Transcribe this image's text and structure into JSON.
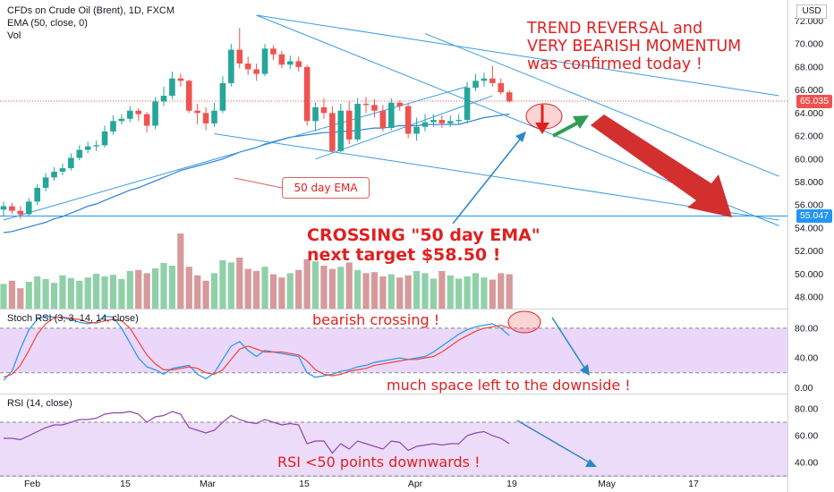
{
  "header": {
    "symbol": "CFDs on Crude Oil (Brent), 1D, FXCM",
    "ema_label": "EMA (50, close, 0)",
    "vol_label": "Vol",
    "stoch_label": "Stoch RSI (3, 3, 14, 14, close)",
    "rsi_label": "RSI (14, close)"
  },
  "price_axis": {
    "currency": "USD",
    "ticks": [
      "72.000",
      "70.000",
      "68.000",
      "66.000",
      "64.000",
      "62.000",
      "60.000",
      "58.000",
      "56.000",
      "54.000",
      "52.000",
      "50.000",
      "48.000"
    ],
    "last_price": "65.035",
    "level_price": "55.047"
  },
  "stoch_axis": {
    "ticks": [
      "80.00",
      "40.00",
      "0.00"
    ]
  },
  "rsi_axis": {
    "ticks": [
      "80.00",
      "60.00",
      "40.00"
    ]
  },
  "time_axis": {
    "ticks": [
      "Feb",
      "15",
      "Mar",
      "15",
      "Apr",
      "19",
      "May",
      "17"
    ]
  },
  "annotations": {
    "trend_line1": "TREND REVERSAL and",
    "trend_line2": "VERY BEARISH MOMENTUM",
    "trend_line3": "was confirmed today !",
    "ema_callout": "50 day EMA",
    "crossing_line1": "CROSSING \"50 day EMA\"",
    "crossing_line2": "next target $58.50 !",
    "bearish_crossing": "bearish crossing !",
    "space_left": "much space left to the downside !",
    "rsi_note": "RSI <50 points downwards !"
  },
  "colors": {
    "up": "#26a69a",
    "down": "#ef5350",
    "annotation": "#e02020",
    "trendline": "#3c9be0",
    "ema": "#2d7fd6",
    "stoch_k": "#2196f3",
    "stoch_d": "#f44336",
    "rsi": "#8e44ad",
    "band": "#e5cdf7",
    "green_arrow": "#2e9e55"
  },
  "chart_data": {
    "type": "candlestick",
    "dates": [
      "01-27",
      "01-28",
      "01-29",
      "02-01",
      "02-02",
      "02-03",
      "02-04",
      "02-05",
      "02-08",
      "02-09",
      "02-10",
      "02-11",
      "02-12",
      "02-15",
      "02-16",
      "02-17",
      "02-18",
      "02-19",
      "02-22",
      "02-23",
      "02-24",
      "02-25",
      "02-26",
      "03-01",
      "03-02",
      "03-03",
      "03-04",
      "03-05",
      "03-08",
      "03-09",
      "03-10",
      "03-11",
      "03-12",
      "03-15",
      "03-16",
      "03-17",
      "03-18",
      "03-19",
      "03-22",
      "03-23",
      "03-24",
      "03-25",
      "03-26",
      "03-29",
      "03-30",
      "03-31",
      "04-01",
      "04-02",
      "04-05",
      "04-06",
      "04-07",
      "04-08",
      "04-09",
      "04-12",
      "04-13",
      "04-14",
      "04-15",
      "04-16",
      "04-19",
      "04-20",
      "04-21"
    ],
    "open": [
      55.6,
      55.9,
      55.5,
      55.2,
      56.3,
      57.5,
      58.4,
      58.9,
      59.2,
      60.1,
      60.8,
      61.1,
      61.2,
      62.4,
      63.3,
      63.5,
      64.2,
      63.9,
      62.9,
      65.0,
      65.5,
      67.0,
      66.8,
      64.2,
      64.0,
      63.1,
      64.2,
      66.6,
      69.5,
      68.3,
      67.8,
      67.4,
      69.6,
      69.1,
      68.2,
      68.5,
      68.0,
      63.3,
      64.5,
      64.0,
      60.7,
      64.2,
      61.7,
      64.8,
      64.7,
      64.2,
      62.7,
      64.9,
      64.6,
      62.2,
      62.8,
      63.2,
      63.4,
      63.1,
      63.3,
      63.4,
      66.2,
      66.8,
      67.0,
      66.6,
      65.8
    ],
    "close": [
      55.9,
      55.5,
      55.2,
      56.3,
      57.5,
      58.4,
      58.9,
      59.2,
      60.1,
      60.8,
      61.1,
      61.2,
      62.4,
      63.3,
      63.5,
      64.2,
      63.9,
      62.9,
      65.0,
      65.5,
      67.0,
      66.8,
      64.2,
      64.0,
      63.1,
      64.2,
      66.6,
      69.5,
      68.3,
      67.8,
      67.4,
      69.6,
      69.1,
      68.2,
      68.5,
      68.0,
      63.3,
      64.5,
      64.0,
      60.7,
      64.2,
      61.7,
      64.8,
      64.7,
      64.2,
      62.7,
      64.9,
      64.6,
      62.2,
      62.8,
      63.2,
      63.4,
      63.1,
      63.3,
      63.4,
      66.2,
      66.8,
      67.0,
      66.6,
      65.8,
      65.0
    ],
    "high": [
      56.3,
      56.2,
      55.9,
      56.6,
      57.8,
      58.8,
      59.3,
      59.6,
      60.5,
      61.2,
      61.5,
      61.6,
      62.9,
      63.8,
      63.9,
      64.6,
      64.4,
      64.1,
      65.4,
      66.3,
      67.6,
      67.4,
      66.9,
      64.8,
      64.5,
      64.9,
      67.2,
      70.0,
      71.4,
      68.9,
      68.3,
      70.0,
      69.9,
      69.4,
      69.0,
      68.9,
      68.2,
      64.9,
      65.3,
      64.6,
      64.8,
      65.0,
      65.3,
      65.4,
      65.2,
      64.7,
      65.3,
      65.1,
      64.8,
      63.6,
      63.9,
      63.9,
      63.8,
      63.8,
      63.9,
      66.7,
      67.4,
      67.5,
      68.1,
      67.0,
      66.0
    ],
    "low": [
      55.0,
      55.2,
      54.8,
      55.0,
      56.0,
      57.2,
      58.1,
      58.6,
      59.0,
      59.9,
      60.5,
      60.7,
      61.0,
      62.1,
      63.0,
      63.2,
      63.3,
      62.3,
      62.6,
      64.6,
      65.2,
      66.3,
      64.0,
      63.0,
      62.5,
      62.8,
      64.0,
      66.3,
      67.9,
      67.3,
      66.8,
      67.2,
      68.6,
      67.9,
      67.8,
      67.6,
      62.9,
      62.4,
      63.5,
      60.5,
      60.6,
      61.3,
      61.5,
      64.0,
      63.6,
      62.4,
      62.5,
      64.2,
      61.8,
      61.6,
      62.4,
      62.8,
      62.7,
      62.8,
      63.0,
      63.1,
      65.9,
      66.3,
      66.3,
      65.6,
      64.9
    ],
    "volume": [
      46,
      52,
      38,
      50,
      60,
      55,
      48,
      62,
      57,
      52,
      58,
      65,
      60,
      63,
      55,
      70,
      72,
      66,
      75,
      85,
      80,
      140,
      78,
      62,
      52,
      66,
      90,
      86,
      95,
      74,
      70,
      78,
      64,
      58,
      66,
      72,
      92,
      88,
      80,
      74,
      78,
      86,
      72,
      66,
      68,
      60,
      64,
      58,
      62,
      70,
      66,
      56,
      70,
      62,
      56,
      60,
      66,
      58,
      54,
      66,
      64
    ],
    "ema50": [
      53.6,
      53.7,
      53.9,
      54.1,
      54.3,
      54.5,
      54.8,
      55.0,
      55.3,
      55.6,
      55.9,
      56.1,
      56.4,
      56.7,
      57.0,
      57.3,
      57.5,
      57.8,
      58.1,
      58.4,
      58.7,
      59.0,
      59.2,
      59.4,
      59.6,
      59.8,
      60.0,
      60.3,
      60.6,
      60.8,
      61.0,
      61.3,
      61.5,
      61.7,
      61.9,
      62.0,
      62.1,
      62.2,
      62.3,
      62.3,
      62.4,
      62.4,
      62.5,
      62.6,
      62.7,
      62.7,
      62.8,
      62.9,
      62.9,
      62.9,
      63.0,
      63.0,
      63.0,
      63.0,
      63.0,
      63.2,
      63.4,
      63.6,
      63.7,
      63.8,
      63.9
    ],
    "stoch_k": [
      10,
      22,
      52,
      78,
      92,
      96,
      95,
      94,
      92,
      88,
      86,
      88,
      96,
      95,
      80,
      60,
      40,
      28,
      24,
      18,
      26,
      28,
      30,
      18,
      12,
      20,
      38,
      56,
      62,
      50,
      42,
      50,
      48,
      46,
      44,
      42,
      20,
      14,
      16,
      18,
      22,
      24,
      28,
      30,
      34,
      36,
      38,
      40,
      38,
      40,
      42,
      48,
      56,
      64,
      72,
      78,
      82,
      84,
      86,
      80,
      70
    ],
    "stoch_d": [
      14,
      18,
      30,
      50,
      72,
      86,
      94,
      95,
      93,
      92,
      88,
      87,
      90,
      92,
      90,
      80,
      62,
      44,
      32,
      24,
      24,
      26,
      28,
      26,
      20,
      18,
      24,
      38,
      52,
      56,
      52,
      48,
      48,
      48,
      46,
      44,
      36,
      24,
      18,
      16,
      18,
      22,
      24,
      26,
      30,
      32,
      34,
      36,
      38,
      38,
      40,
      42,
      48,
      56,
      64,
      70,
      76,
      80,
      82,
      84,
      80
    ],
    "rsi": [
      58,
      58,
      57,
      60,
      63,
      66,
      68,
      68,
      70,
      72,
      72,
      73,
      76,
      77,
      77,
      78,
      76,
      70,
      74,
      75,
      78,
      76,
      66,
      64,
      62,
      64,
      70,
      75,
      72,
      70,
      69,
      72,
      70,
      68,
      69,
      68,
      54,
      56,
      56,
      47,
      54,
      50,
      56,
      54,
      52,
      50,
      56,
      55,
      49,
      52,
      53,
      54,
      53,
      54,
      54,
      60,
      62,
      63,
      60,
      58,
      54
    ],
    "price_range": [
      47,
      73.2
    ],
    "stoch_range": [
      -8,
      104
    ],
    "rsi_range": [
      30,
      90
    ],
    "stoch_band": [
      20,
      80
    ],
    "rsi_band": [
      30,
      70
    ],
    "target": 58.5
  }
}
